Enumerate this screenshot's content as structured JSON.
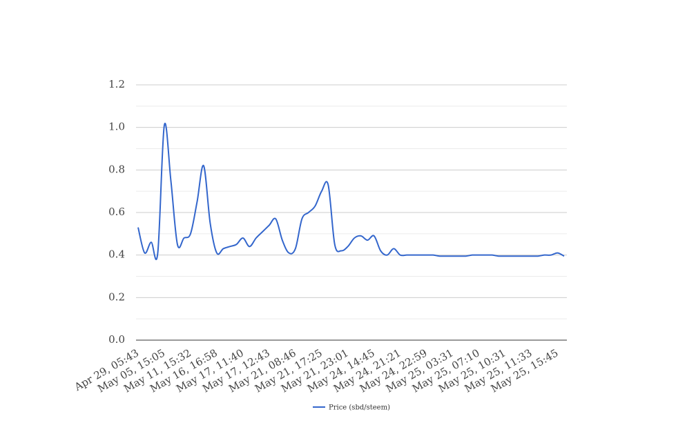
{
  "chart_data": {
    "type": "line",
    "categories": [
      "Apr 29, 05:43",
      null,
      null,
      null,
      "May 05, 15:05",
      null,
      null,
      null,
      "May 11, 15:32",
      null,
      null,
      null,
      "May 16, 16:58",
      null,
      null,
      null,
      "May 17, 11:40",
      null,
      null,
      null,
      "May 17, 12:43",
      null,
      null,
      null,
      "May 21, 08:46",
      null,
      null,
      null,
      "May 21, 17:25",
      null,
      null,
      null,
      "May 21, 23:01",
      null,
      null,
      null,
      "May 24, 14:45",
      null,
      null,
      null,
      "May 24, 21:21",
      null,
      null,
      null,
      "May 24, 22:59",
      null,
      null,
      null,
      "May 25, 03:31",
      null,
      null,
      null,
      "May 25, 07:10",
      null,
      null,
      null,
      "May 25, 10:31",
      null,
      null,
      null,
      "May 25, 11:33",
      null,
      null,
      null,
      "May 25, 15:45",
      null
    ],
    "series": [
      {
        "name": "Price (sbd/steem)",
        "color": "#3366cc",
        "values": [
          0.53,
          0.41,
          0.46,
          0.41,
          1.01,
          0.75,
          0.45,
          0.48,
          0.5,
          0.65,
          0.82,
          0.55,
          0.41,
          0.43,
          0.44,
          0.45,
          0.48,
          0.44,
          0.48,
          0.51,
          0.54,
          0.57,
          0.47,
          0.41,
          0.43,
          0.57,
          0.6,
          0.63,
          0.7,
          0.73,
          0.45,
          0.42,
          0.44,
          0.48,
          0.49,
          0.47,
          0.49,
          0.42,
          0.4,
          0.43,
          0.4,
          0.4,
          0.4,
          0.4,
          0.4,
          0.4,
          0.395,
          0.395,
          0.395,
          0.395,
          0.395,
          0.4,
          0.4,
          0.4,
          0.4,
          0.395,
          0.395,
          0.395,
          0.395,
          0.395,
          0.395,
          0.395,
          0.4,
          0.4,
          0.41,
          0.395
        ]
      }
    ],
    "ylim": [
      0,
      1.2
    ],
    "yticks": [
      {
        "value": 0,
        "label": "0.0"
      },
      0.2,
      0.4,
      0.6,
      0.8,
      {
        "value": 1,
        "label": "1.0"
      },
      1.2
    ],
    "minor_yticks": [
      0.1,
      0.3,
      0.5,
      0.7,
      0.9,
      1.1
    ],
    "grid": true,
    "legend": "bottom"
  }
}
